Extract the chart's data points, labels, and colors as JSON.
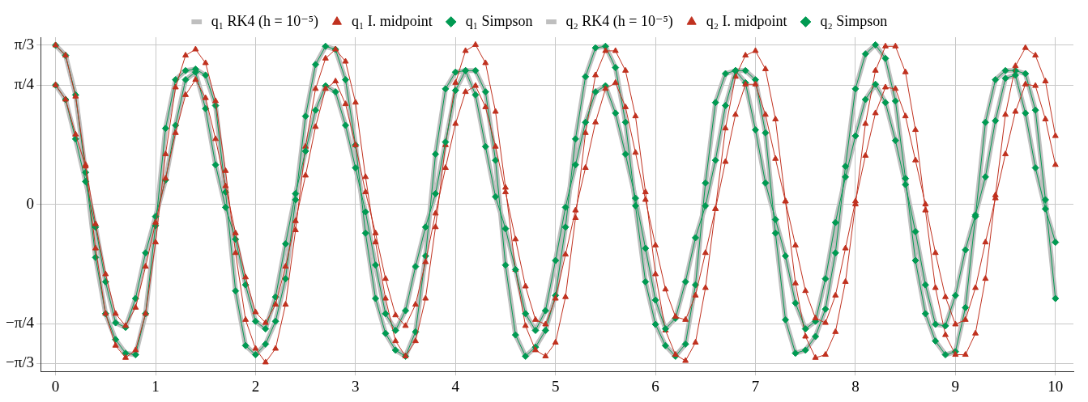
{
  "chart_data": {
    "type": "line",
    "x": [
      0,
      0.1,
      0.2,
      0.3,
      0.4,
      0.5,
      0.6,
      0.7,
      0.8,
      0.9,
      1,
      1.1,
      1.2,
      1.3,
      1.4,
      1.5,
      1.6,
      1.7,
      1.8,
      1.9,
      2,
      2.1,
      2.2,
      2.3,
      2.4,
      2.5,
      2.6,
      2.7,
      2.8,
      2.9,
      3,
      3.1,
      3.2,
      3.3,
      3.4,
      3.5,
      3.6,
      3.7,
      3.8,
      3.9,
      4,
      4.1,
      4.2,
      4.3,
      4.4,
      4.5,
      4.6,
      4.7,
      4.8,
      4.9,
      5,
      5.1,
      5.2,
      5.3,
      5.4,
      5.5,
      5.6,
      5.7,
      5.8,
      5.9,
      6,
      6.1,
      6.2,
      6.3,
      6.4,
      6.5,
      6.6,
      6.7,
      6.8,
      6.9,
      7,
      7.1,
      7.2,
      7.3,
      7.4,
      7.5,
      7.6,
      7.7,
      7.8,
      7.9,
      8,
      8.1,
      8.2,
      8.3,
      8.4,
      8.5,
      8.6,
      8.7,
      8.8,
      8.9,
      9,
      9.1,
      9.2,
      9.3,
      9.4,
      9.5,
      9.6,
      9.7,
      9.8,
      9.9,
      10
    ],
    "series": [
      {
        "name": "q₁ RK4 (h = 10⁻⁵)",
        "color": "#bfbfbf",
        "marker": "none",
        "values": [
          0.785,
          0.69,
          0.43,
          0.15,
          -0.15,
          -0.51,
          -0.78,
          -0.81,
          -0.62,
          -0.32,
          -0.08,
          0.16,
          0.52,
          0.82,
          0.87,
          0.63,
          0.26,
          -0.02,
          -0.23,
          -0.53,
          -0.77,
          -0.82,
          -0.61,
          -0.26,
          0.07,
          0.35,
          0.62,
          0.78,
          0.74,
          0.52,
          0.24,
          -0.05,
          -0.4,
          -0.72,
          -0.83,
          -0.7,
          -0.41,
          -0.15,
          0.07,
          0.41,
          0.75,
          0.88,
          0.72,
          0.38,
          0.05,
          -0.16,
          -0.43,
          -0.72,
          -0.83,
          -0.7,
          -0.37,
          -0.02,
          0.26,
          0.54,
          0.74,
          0.78,
          0.6,
          0.33,
          0.04,
          -0.29,
          -0.63,
          -0.82,
          -0.75,
          -0.51,
          -0.22,
          -0.01,
          0.29,
          0.65,
          0.88,
          0.8,
          0.49,
          0.14,
          -0.1,
          -0.34,
          -0.65,
          -0.82,
          -0.77,
          -0.49,
          -0.12,
          0.18,
          0.45,
          0.69,
          0.79,
          0.67,
          0.42,
          0.13,
          -0.18,
          -0.53,
          -0.79,
          -0.8,
          -0.6,
          -0.3,
          -0.07,
          0.18,
          0.55,
          0.83,
          0.85,
          0.6,
          0.24,
          -0.03,
          -0.25
        ]
      },
      {
        "name": "q₁ I. midpoint",
        "color": "#c0311f",
        "marker": "triangle",
        "values": [
          0.785,
          0.69,
          0.46,
          0.25,
          -0.13,
          -0.46,
          -0.72,
          -0.8,
          -0.68,
          -0.41,
          -0.12,
          0.17,
          0.47,
          0.72,
          0.82,
          0.7,
          0.43,
          0.12,
          -0.19,
          -0.48,
          -0.71,
          -0.78,
          -0.66,
          -0.41,
          -0.11,
          0.19,
          0.51,
          0.76,
          0.81,
          0.66,
          0.39,
          0.08,
          -0.19,
          -0.49,
          -0.73,
          -0.8,
          -0.66,
          -0.38,
          -0.06,
          0.24,
          0.53,
          0.74,
          0.78,
          0.64,
          0.38,
          0.08,
          -0.23,
          -0.54,
          -0.76,
          -0.79,
          -0.62,
          -0.33,
          -0.04,
          0.24,
          0.54,
          0.76,
          0.8,
          0.64,
          0.34,
          0.03,
          -0.27,
          -0.56,
          -0.74,
          -0.76,
          -0.6,
          -0.32,
          -0.03,
          0.28,
          0.59,
          0.79,
          0.79,
          0.59,
          0.3,
          0.02,
          -0.27,
          -0.57,
          -0.75,
          -0.78,
          -0.6,
          -0.29,
          0.02,
          0.32,
          0.6,
          0.77,
          0.76,
          0.58,
          0.29,
          0.0,
          -0.32,
          -0.61,
          -0.79,
          -0.76,
          -0.55,
          -0.25,
          0.04,
          0.33,
          0.61,
          0.79,
          0.78,
          0.56,
          0.26
        ]
      },
      {
        "name": "q₁ Simpson",
        "color": "#009a52",
        "marker": "diamond",
        "values": [
          0.785,
          0.69,
          0.43,
          0.15,
          -0.15,
          -0.51,
          -0.78,
          -0.81,
          -0.62,
          -0.32,
          -0.08,
          0.16,
          0.52,
          0.82,
          0.87,
          0.63,
          0.26,
          -0.02,
          -0.23,
          -0.53,
          -0.77,
          -0.82,
          -0.61,
          -0.26,
          0.07,
          0.35,
          0.62,
          0.78,
          0.74,
          0.52,
          0.24,
          -0.05,
          -0.4,
          -0.72,
          -0.83,
          -0.7,
          -0.41,
          -0.15,
          0.07,
          0.41,
          0.75,
          0.88,
          0.72,
          0.38,
          0.05,
          -0.16,
          -0.43,
          -0.72,
          -0.83,
          -0.7,
          -0.37,
          -0.02,
          0.26,
          0.54,
          0.74,
          0.78,
          0.6,
          0.33,
          0.04,
          -0.29,
          -0.63,
          -0.82,
          -0.75,
          -0.51,
          -0.22,
          -0.01,
          0.29,
          0.65,
          0.88,
          0.8,
          0.49,
          0.14,
          -0.1,
          -0.34,
          -0.65,
          -0.82,
          -0.77,
          -0.49,
          -0.12,
          0.18,
          0.45,
          0.69,
          0.79,
          0.67,
          0.42,
          0.13,
          -0.18,
          -0.53,
          -0.79,
          -0.8,
          -0.6,
          -0.3,
          -0.07,
          0.18,
          0.55,
          0.83,
          0.85,
          0.6,
          0.24,
          -0.03,
          -0.25
        ]
      },
      {
        "name": "q₂ RK4 (h = 10⁻⁵)",
        "color": "#bfbfbf",
        "marker": "none",
        "values": [
          1.047,
          0.98,
          0.72,
          0.21,
          -0.35,
          -0.72,
          -0.89,
          -0.98,
          -0.99,
          -0.72,
          -0.14,
          0.5,
          0.82,
          0.88,
          0.89,
          0.85,
          0.65,
          0.08,
          -0.57,
          -0.93,
          -0.99,
          -0.92,
          -0.77,
          -0.49,
          0.03,
          0.58,
          0.92,
          1.04,
          1.02,
          0.82,
          0.39,
          -0.19,
          -0.62,
          -0.85,
          -0.96,
          -1.0,
          -0.84,
          -0.34,
          0.33,
          0.76,
          0.87,
          0.88,
          0.88,
          0.74,
          0.29,
          -0.4,
          -0.86,
          -1.0,
          -0.94,
          -0.83,
          -0.6,
          -0.15,
          0.43,
          0.84,
          1.03,
          1.04,
          0.9,
          0.54,
          -0.01,
          -0.51,
          -0.79,
          -0.93,
          -1.0,
          -0.92,
          -0.53,
          0.14,
          0.67,
          0.86,
          0.88,
          0.88,
          0.82,
          0.47,
          -0.19,
          -0.76,
          -0.98,
          -0.96,
          -0.87,
          -0.69,
          -0.32,
          0.25,
          0.76,
          0.99,
          1.05,
          0.96,
          0.68,
          0.17,
          -0.37,
          -0.72,
          -0.9,
          -0.99,
          -0.97,
          -0.68,
          -0.08,
          0.54,
          0.82,
          0.88,
          0.88,
          0.86,
          0.62,
          0.03,
          -0.62
        ]
      },
      {
        "name": "q₂ I. midpoint",
        "color": "#c0311f",
        "marker": "triangle",
        "values": [
          1.047,
          0.98,
          0.71,
          0.26,
          -0.29,
          -0.72,
          -0.93,
          -1.01,
          -0.96,
          -0.72,
          -0.25,
          0.33,
          0.77,
          0.98,
          1.02,
          0.93,
          0.68,
          0.22,
          -0.32,
          -0.76,
          -0.95,
          -1.04,
          -0.95,
          -0.66,
          -0.17,
          0.38,
          0.76,
          0.96,
          1.02,
          0.94,
          0.67,
          0.18,
          -0.25,
          -0.62,
          -0.9,
          -1.0,
          -0.9,
          -0.62,
          -0.15,
          0.39,
          0.8,
          1.01,
          1.05,
          0.93,
          0.61,
          0.11,
          -0.43,
          -0.8,
          -0.96,
          -1.0,
          -0.91,
          -0.61,
          -0.09,
          0.47,
          0.85,
          1.01,
          1.01,
          0.88,
          0.58,
          0.08,
          -0.46,
          -0.83,
          -0.99,
          -1.03,
          -0.91,
          -0.55,
          -0.03,
          0.5,
          0.84,
          0.98,
          1.01,
          0.89,
          0.56,
          0.02,
          -0.52,
          -0.87,
          -1.01,
          -0.99,
          -0.84,
          -0.51,
          0.0,
          0.53,
          0.88,
          1.04,
          1.04,
          0.87,
          0.49,
          -0.04,
          -0.55,
          -0.86,
          -0.99,
          -0.99,
          -0.85,
          -0.49,
          0.06,
          0.59,
          0.91,
          1.03,
          0.98,
          0.81,
          0.45
        ]
      },
      {
        "name": "q₂ Simpson",
        "color": "#009a52",
        "marker": "diamond",
        "values": [
          1.047,
          0.98,
          0.72,
          0.21,
          -0.35,
          -0.72,
          -0.89,
          -0.98,
          -0.99,
          -0.72,
          -0.14,
          0.5,
          0.82,
          0.88,
          0.89,
          0.85,
          0.65,
          0.08,
          -0.57,
          -0.93,
          -0.99,
          -0.92,
          -0.77,
          -0.49,
          0.03,
          0.58,
          0.92,
          1.04,
          1.02,
          0.82,
          0.39,
          -0.19,
          -0.62,
          -0.85,
          -0.96,
          -1.0,
          -0.84,
          -0.34,
          0.33,
          0.76,
          0.87,
          0.88,
          0.88,
          0.74,
          0.29,
          -0.4,
          -0.86,
          -1.0,
          -0.94,
          -0.83,
          -0.6,
          -0.15,
          0.43,
          0.84,
          1.03,
          1.04,
          0.9,
          0.54,
          -0.01,
          -0.51,
          -0.79,
          -0.93,
          -1.0,
          -0.92,
          -0.53,
          0.14,
          0.67,
          0.86,
          0.88,
          0.88,
          0.82,
          0.47,
          -0.19,
          -0.76,
          -0.98,
          -0.96,
          -0.87,
          -0.69,
          -0.32,
          0.25,
          0.76,
          0.99,
          1.05,
          0.96,
          0.68,
          0.17,
          -0.37,
          -0.72,
          -0.9,
          -0.99,
          -0.97,
          -0.68,
          -0.08,
          0.54,
          0.82,
          0.88,
          0.88,
          0.86,
          0.62,
          0.03,
          -0.62
        ]
      }
    ],
    "xlim": [
      -0.15,
      10.18
    ],
    "xticks": [
      0,
      1,
      2,
      3,
      4,
      5,
      6,
      7,
      8,
      9,
      10
    ],
    "ylim": [
      -1.1,
      1.1
    ],
    "yticks": [
      {
        "value": -1.0472,
        "label": "−π/3"
      },
      {
        "value": -0.7854,
        "label": "−π/4"
      },
      0,
      {
        "value": 0.7854,
        "label": "π/4"
      },
      {
        "value": 1.0472,
        "label": "π/3"
      }
    ],
    "grid": true,
    "legend": "top",
    "line_style": "solid"
  }
}
